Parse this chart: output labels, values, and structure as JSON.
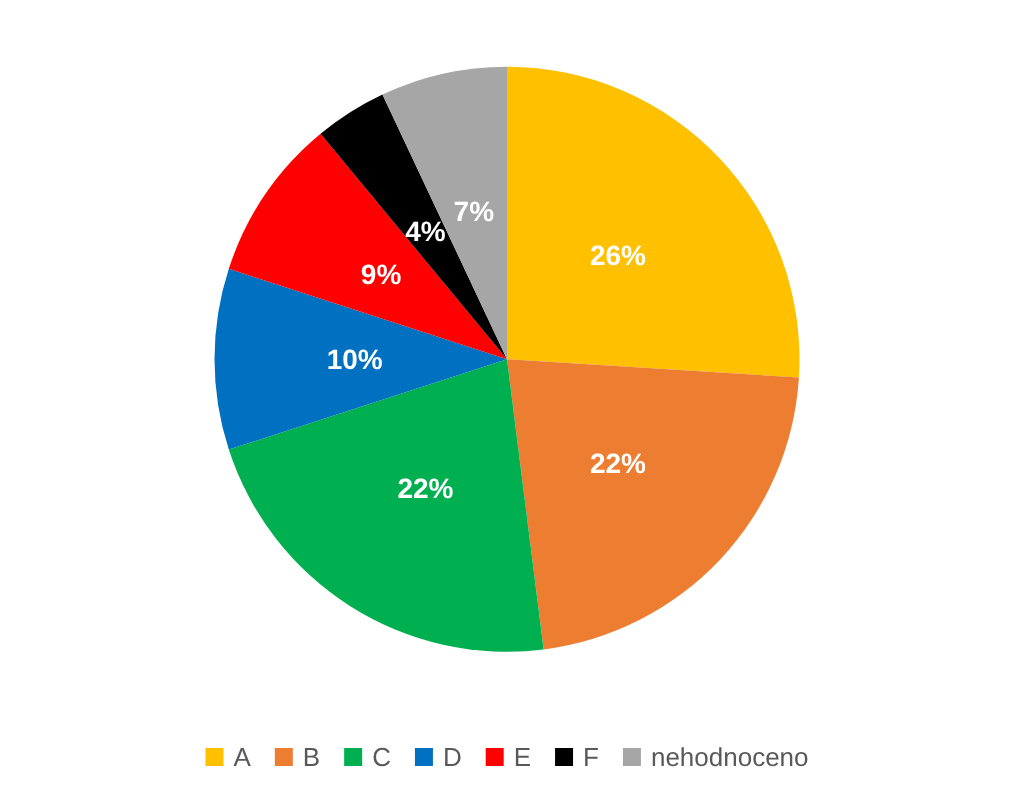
{
  "chart_data": {
    "type": "pie",
    "categories": [
      "A",
      "B",
      "C",
      "D",
      "E",
      "F",
      "nehodnoceno"
    ],
    "values": [
      26,
      22,
      22,
      10,
      9,
      4,
      7
    ],
    "colors": [
      "#ffc000",
      "#ed7d31",
      "#00b050",
      "#0070c0",
      "#ff0000",
      "#000000",
      "#a6a6a6"
    ],
    "value_labels": [
      "26%",
      "22%",
      "22%",
      "10%",
      "9%",
      "4%",
      "7%"
    ],
    "legend": "bottom"
  }
}
